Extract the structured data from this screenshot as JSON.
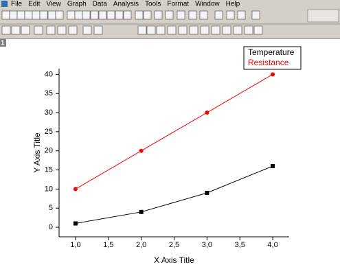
{
  "menu": [
    "File",
    "Edit",
    "View",
    "Graph",
    "Data",
    "Analysis",
    "Tools",
    "Format",
    "Window",
    "Help"
  ],
  "window_label": "1",
  "chart_data": {
    "type": "line",
    "x_label": "X Axis Title",
    "y_label": "Y Axis Title",
    "x": [
      1,
      2,
      3,
      4
    ],
    "series": [
      {
        "name": "Temperature",
        "color": "#000000",
        "marker": "square",
        "values": [
          1,
          4,
          9,
          16
        ]
      },
      {
        "name": "Resistance",
        "color": "#ff0000",
        "marker": "circle",
        "values": [
          10,
          20,
          30,
          40
        ]
      }
    ],
    "xlim": [
      0.75,
      4.25
    ],
    "xticks": [
      {
        "value": 1,
        "label": "1,0"
      },
      {
        "value": 1.5,
        "label": "1,5"
      },
      {
        "value": 2,
        "label": "2,0"
      },
      {
        "value": 2.5,
        "label": "2,5"
      },
      {
        "value": 3,
        "label": "3,0"
      },
      {
        "value": 3.5,
        "label": "3,5"
      },
      {
        "value": 4,
        "label": "4,0"
      }
    ],
    "ylim": [
      -2.5,
      41.5
    ],
    "yticks": [
      0,
      5,
      10,
      15,
      20,
      25,
      30,
      35,
      40
    ],
    "grid": false,
    "legend": "top-right"
  }
}
